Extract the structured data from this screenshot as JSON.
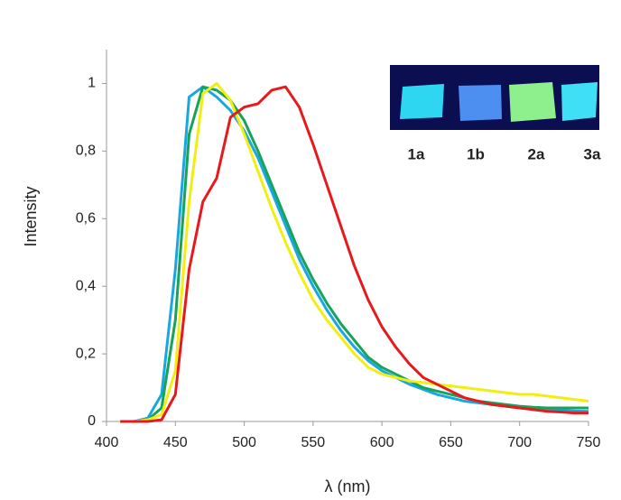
{
  "chart_data": {
    "type": "line",
    "x_label": "λ (nm)",
    "y_label": "Intensity",
    "x": [
      410,
      420,
      430,
      440,
      450,
      460,
      470,
      480,
      490,
      500,
      510,
      520,
      530,
      540,
      550,
      560,
      570,
      580,
      590,
      600,
      610,
      620,
      630,
      640,
      650,
      660,
      670,
      680,
      690,
      700,
      710,
      720,
      730,
      740,
      750
    ],
    "series": [
      {
        "color": "#1aa7e0",
        "values": [
          0,
          0,
          0.01,
          0.08,
          0.45,
          0.96,
          0.99,
          0.96,
          0.92,
          0.86,
          0.78,
          0.68,
          0.58,
          0.48,
          0.4,
          0.33,
          0.27,
          0.22,
          0.18,
          0.15,
          0.13,
          0.11,
          0.095,
          0.08,
          0.07,
          0.06,
          0.055,
          0.05,
          0.045,
          0.04,
          0.037,
          0.035,
          0.033,
          0.031,
          0.03
        ]
      },
      {
        "color": "#17a35a",
        "values": [
          0,
          0,
          0.005,
          0.04,
          0.3,
          0.85,
          0.99,
          0.98,
          0.95,
          0.89,
          0.8,
          0.7,
          0.6,
          0.5,
          0.42,
          0.35,
          0.29,
          0.24,
          0.19,
          0.16,
          0.14,
          0.12,
          0.1,
          0.09,
          0.08,
          0.07,
          0.06,
          0.055,
          0.05,
          0.045,
          0.042,
          0.04,
          0.04,
          0.04,
          0.04
        ]
      },
      {
        "color": "#f2ee12",
        "values": [
          0,
          0,
          0.005,
          0.02,
          0.15,
          0.65,
          0.97,
          1.0,
          0.95,
          0.85,
          0.74,
          0.63,
          0.53,
          0.44,
          0.36,
          0.3,
          0.25,
          0.2,
          0.16,
          0.14,
          0.13,
          0.12,
          0.115,
          0.11,
          0.105,
          0.1,
          0.095,
          0.09,
          0.085,
          0.08,
          0.08,
          0.075,
          0.07,
          0.065,
          0.06
        ]
      },
      {
        "color": "#e8191c",
        "values": [
          0,
          0,
          0,
          0.005,
          0.08,
          0.45,
          0.65,
          0.72,
          0.9,
          0.93,
          0.94,
          0.98,
          0.99,
          0.93,
          0.82,
          0.7,
          0.58,
          0.46,
          0.36,
          0.28,
          0.22,
          0.17,
          0.13,
          0.11,
          0.09,
          0.07,
          0.06,
          0.05,
          0.045,
          0.04,
          0.035,
          0.03,
          0.028,
          0.025,
          0.025
        ]
      }
    ],
    "xlim": [
      400,
      750
    ],
    "xticks": [
      400,
      450,
      500,
      550,
      600,
      650,
      700,
      750
    ],
    "ylim": [
      0,
      1.1
    ],
    "yticks": [
      0,
      {
        "value": 0.2,
        "label": "0,2"
      },
      {
        "value": 0.4,
        "label": "0,4"
      },
      {
        "value": 0.6,
        "label": "0,6"
      },
      {
        "value": 0.8,
        "label": "0,8"
      },
      1
    ],
    "inset_labels": [
      "1a",
      "1b",
      "2a",
      "3a"
    ]
  }
}
